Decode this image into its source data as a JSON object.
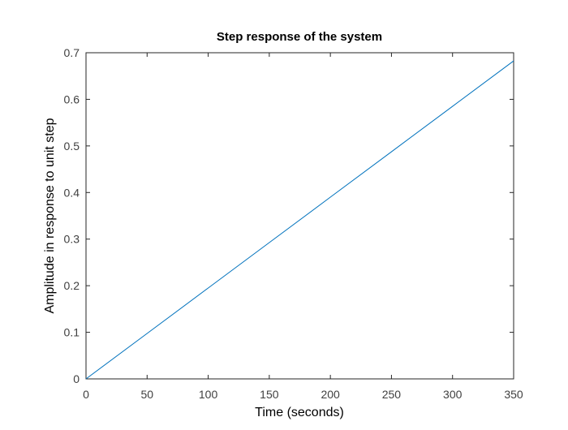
{
  "chart_data": {
    "type": "line",
    "title": "Step response of the system",
    "xlabel": "Time (seconds)",
    "ylabel": "Amplitude in response to unit step",
    "xlim": [
      0,
      350
    ],
    "ylim": [
      0,
      0.7
    ],
    "xticks": [
      0,
      50,
      100,
      150,
      200,
      250,
      300,
      350
    ],
    "yticks": [
      0,
      0.1,
      0.2,
      0.3,
      0.4,
      0.5,
      0.6,
      0.7
    ],
    "grid": false,
    "series": [
      {
        "color": "#0072BD",
        "x": [
          0,
          50,
          100,
          150,
          200,
          250,
          300,
          350
        ],
        "y": [
          0,
          0.0975,
          0.195,
          0.2925,
          0.39,
          0.4875,
          0.585,
          0.6825
        ]
      }
    ]
  },
  "colors": {
    "axis": "#262626",
    "tick_text": "#404040",
    "background": "#ffffff"
  }
}
